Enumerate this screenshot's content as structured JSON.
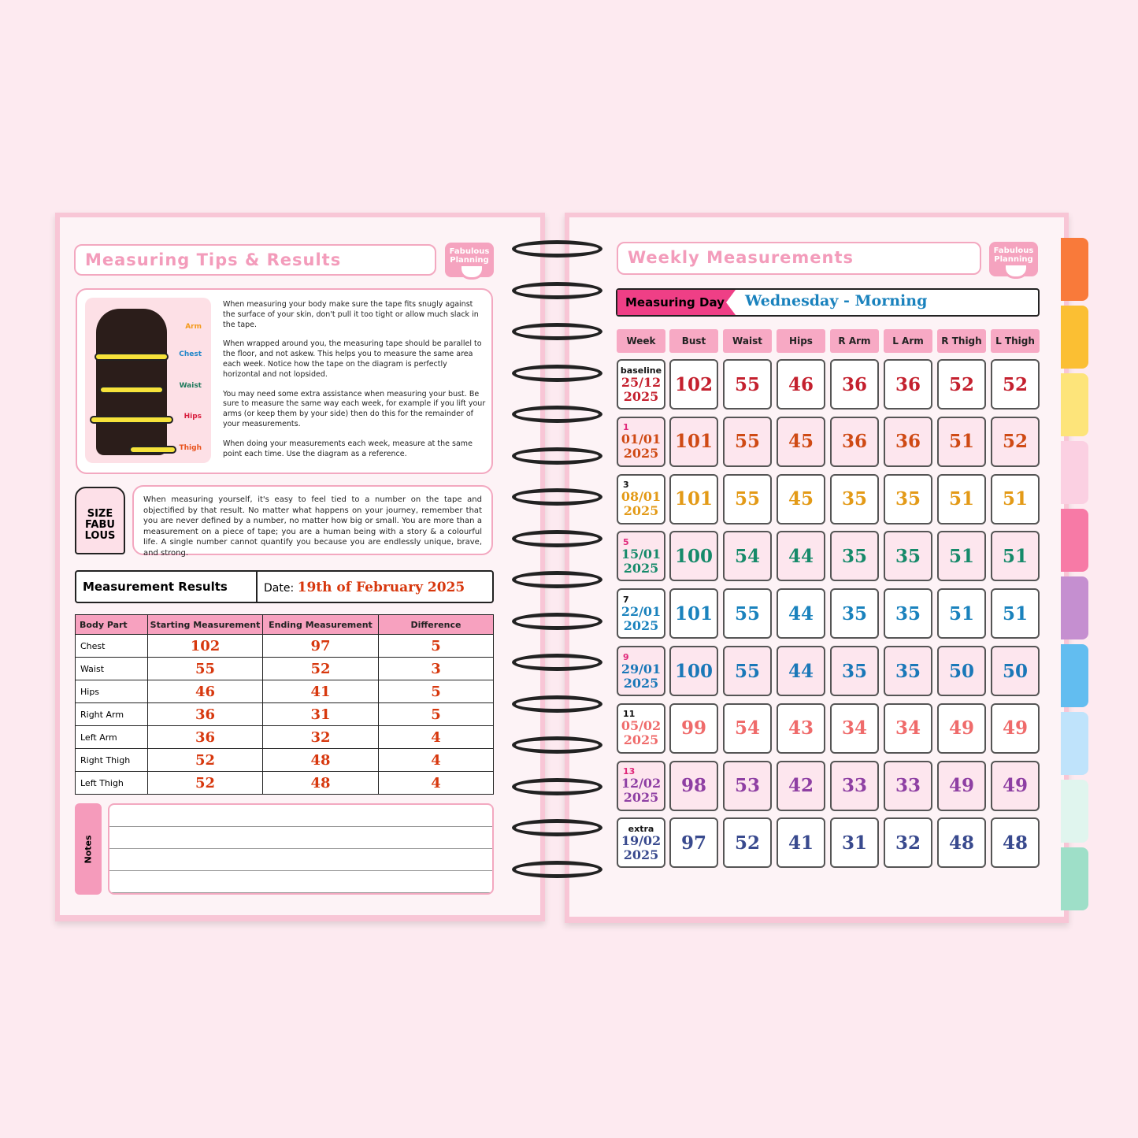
{
  "left": {
    "title": "Measuring Tips & Results",
    "logo": "Fabulous Planning",
    "diagram_labels": [
      "Arm",
      "Chest",
      "Waist",
      "Hips",
      "Thigh"
    ],
    "diagram_colors": [
      "#f39a1b",
      "#1f86c9",
      "#1f7a5c",
      "#d81b3c",
      "#e8531d"
    ],
    "tips": [
      "When measuring your body make sure the tape fits snugly against the surface of your skin, don't pull it too tight or allow much slack in the tape.",
      "When wrapped around you, the measuring tape should be parallel to the floor, and not askew. This helps you to measure the same area each week. Notice how the tape on the diagram is perfectly horizontal and not lopsided.",
      "You may need some extra assistance when measuring your bust. Be sure to measure the same way each week, for example if you lift your arms (or keep them by your side) then do this for the remainder of your measurements.",
      "When doing your measurements each week, measure at the same point each time. Use the diagram as a reference."
    ],
    "size_tag": [
      "SIZE",
      "FABU",
      "LOUS"
    ],
    "quote": "When measuring yourself, it's easy to feel tied to a number on the tape and objectified by that result. No matter what happens on your journey, remember that you are never defined by a number, no matter how big or small. You are more than a measurement on a piece of tape; you are a human being with a story & a colourful life. A single number cannot quantify you because you are endlessly unique, brave, and strong.",
    "results": {
      "title": "Measurement Results",
      "date_label": "Date:",
      "date_value": "19th of February 2025",
      "headers": [
        "Body Part",
        "Starting Measurement",
        "Ending Measurement",
        "Difference"
      ],
      "rows": [
        [
          "Chest",
          "102",
          "97",
          "5"
        ],
        [
          "Waist",
          "55",
          "52",
          "3"
        ],
        [
          "Hips",
          "46",
          "41",
          "5"
        ],
        [
          "Right Arm",
          "36",
          "31",
          "5"
        ],
        [
          "Left Arm",
          "36",
          "32",
          "4"
        ],
        [
          "Right Thigh",
          "52",
          "48",
          "4"
        ],
        [
          "Left Thigh",
          "52",
          "48",
          "4"
        ]
      ]
    },
    "notes_label": "Notes"
  },
  "right": {
    "title": "Weekly Measurements",
    "logo": "Fabulous Planning",
    "measuring_day_label": "Measuring Day",
    "measuring_day_value": "Wednesday - Morning",
    "headers": [
      "Week",
      "Bust",
      "Waist",
      "Hips",
      "R Arm",
      "L Arm",
      "R Thigh",
      "L Thigh"
    ],
    "rows": [
      {
        "tag": "baseline",
        "date": "25/12",
        "year": "2025",
        "color": "#c4202e",
        "tagcolor": "#111",
        "values": [
          "102",
          "55",
          "46",
          "36",
          "36",
          "52",
          "52"
        ]
      },
      {
        "tag": "1",
        "date": "01/01",
        "year": "2025",
        "color": "#cf4a14",
        "tagcolor": "#e0287a",
        "values": [
          "101",
          "55",
          "45",
          "36",
          "36",
          "51",
          "52"
        ]
      },
      {
        "tag": "3",
        "date": "08/01",
        "year": "2025",
        "color": "#e39a17",
        "tagcolor": "#111",
        "values": [
          "101",
          "55",
          "45",
          "35",
          "35",
          "51",
          "51"
        ]
      },
      {
        "tag": "5",
        "date": "15/01",
        "year": "2025",
        "color": "#168a6a",
        "tagcolor": "#e0287a",
        "values": [
          "100",
          "54",
          "44",
          "35",
          "35",
          "51",
          "51"
        ]
      },
      {
        "tag": "7",
        "date": "22/01",
        "year": "2025",
        "color": "#1a82bd",
        "tagcolor": "#111",
        "values": [
          "101",
          "55",
          "44",
          "35",
          "35",
          "51",
          "51"
        ]
      },
      {
        "tag": "9",
        "date": "29/01",
        "year": "2025",
        "color": "#1a78b8",
        "tagcolor": "#e0287a",
        "values": [
          "100",
          "55",
          "44",
          "35",
          "35",
          "50",
          "50"
        ]
      },
      {
        "tag": "11",
        "date": "05/02",
        "year": "2025",
        "color": "#ef6b6b",
        "tagcolor": "#111",
        "values": [
          "99",
          "54",
          "43",
          "34",
          "34",
          "49",
          "49"
        ]
      },
      {
        "tag": "13",
        "date": "12/02",
        "year": "2025",
        "color": "#8e3fa3",
        "tagcolor": "#e0287a",
        "values": [
          "98",
          "53",
          "42",
          "33",
          "33",
          "49",
          "49"
        ]
      },
      {
        "tag": "extra",
        "date": "19/02",
        "year": "2025",
        "color": "#394a8e",
        "tagcolor": "#111",
        "values": [
          "97",
          "52",
          "41",
          "31",
          "32",
          "48",
          "48"
        ]
      }
    ]
  },
  "tab_colors": [
    "#f97a3a",
    "#fbbf33",
    "#fde47a",
    "#fbd0e2",
    "#f77aa6",
    "#c58fd0",
    "#62bdf0",
    "#bfe3fb",
    "#e0f5ee",
    "#9edfc8"
  ]
}
